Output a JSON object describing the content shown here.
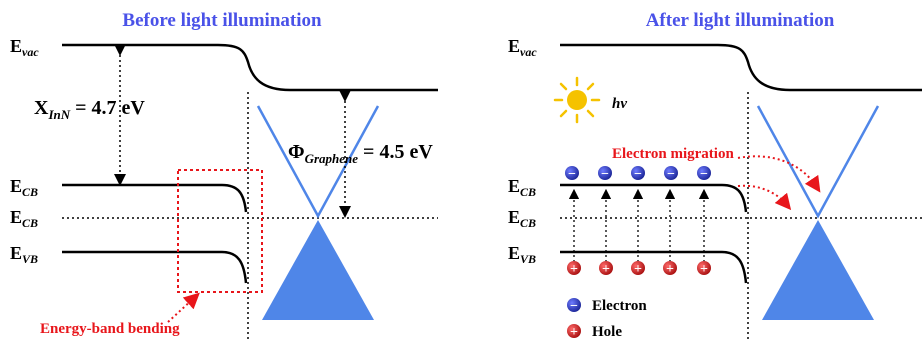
{
  "panels": [
    {
      "title": "Before light illumination",
      "evac": {
        "base": "E",
        "sub": "vac"
      },
      "ecb_upper": {
        "base": "E",
        "sub": "CB"
      },
      "ecb_lower": {
        "base": "E",
        "sub": "CB"
      },
      "evb": {
        "base": "E",
        "sub": "VB"
      },
      "chi": {
        "base": "X",
        "sub": "InN",
        "value": " = 4.7 eV"
      },
      "phi": {
        "base": "Φ",
        "sub": "Graphene",
        "value": " = 4.5 eV"
      },
      "callout": "Energy-band bending"
    },
    {
      "title": "After light illumination",
      "evac": {
        "base": "E",
        "sub": "vac"
      },
      "ecb_upper": {
        "base": "E",
        "sub": "CB"
      },
      "ecb_lower": {
        "base": "E",
        "sub": "CB"
      },
      "evb": {
        "base": "E",
        "sub": "VB"
      },
      "hv": "hv",
      "migration": "Electron migration",
      "electron_symbol": "−",
      "hole_symbol": "+",
      "legend": {
        "electron": "Electron",
        "hole": "Hole"
      }
    }
  ],
  "colors": {
    "title": "#4a52e8",
    "callout": "#e8161b",
    "graphene": "#4f86e8",
    "electron": "#2a36c0",
    "hole": "#d41a1a",
    "sun": "#f5c200",
    "line": "#000000"
  },
  "icons": {
    "sun": "sun-icon",
    "electron": "electron-icon",
    "hole": "hole-icon"
  }
}
